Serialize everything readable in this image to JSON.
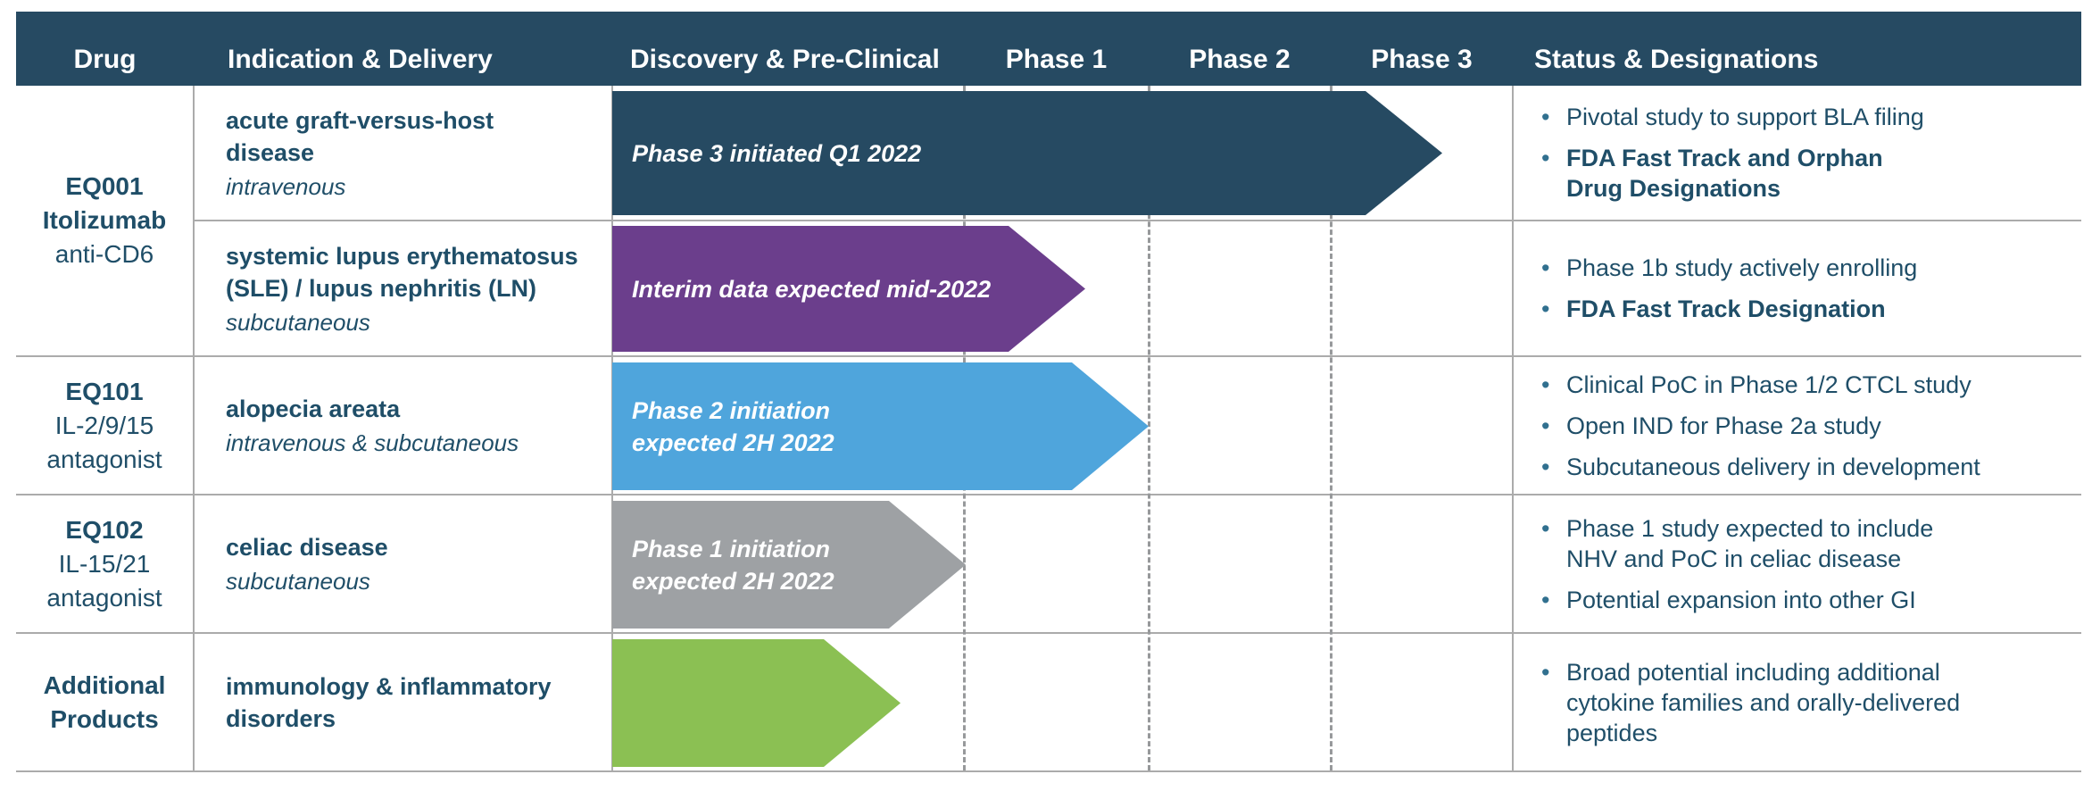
{
  "palette": {
    "header_navy": "#264A62",
    "arrow_navy": "#264A62",
    "arrow_purple": "#6B3E8C",
    "arrow_blue": "#4FA5DC",
    "arrow_gray": "#9EA1A4",
    "arrow_green": "#8BC053",
    "text_ink": "#1F4E68",
    "grid_line": "#ABABAB",
    "bullet_dot": "#31708F"
  },
  "header": {
    "drug": "Drug",
    "indication": "Indication & Delivery",
    "discovery": "Discovery & Pre-Clinical",
    "phase1": "Phase 1",
    "phase2": "Phase 2",
    "phase3": "Phase 3",
    "status": "Status & Designations"
  },
  "programs": {
    "eq001": {
      "code": "EQ001",
      "name": "Itolizumab",
      "target": "anti-CD6"
    },
    "eq101": {
      "code": "EQ101",
      "name": "IL-2/9/15",
      "target": "antagonist"
    },
    "eq102": {
      "code": "EQ102",
      "name": "IL-15/21",
      "target": "antagonist"
    },
    "additional": {
      "code": "Additional",
      "name": "Products"
    }
  },
  "lanes": {
    "gvhd": {
      "indication": "acute graft-versus-host\ndisease",
      "delivery": "intravenous",
      "arrow_label": "Phase 3 initiated Q1 2022",
      "arrow_color": "#264A62",
      "bullets": [
        {
          "text": "Pivotal study to support BLA filing",
          "bold": false
        },
        {
          "text": "FDA Fast Track and Orphan\nDrug Designations",
          "bold": true
        }
      ]
    },
    "lupus": {
      "indication": "systemic lupus erythematosus\n(SLE) / lupus nephritis (LN)",
      "delivery": "subcutaneous",
      "arrow_label": "Interim data expected mid-2022",
      "arrow_color": "#6B3E8C",
      "bullets": [
        {
          "text": "Phase 1b study actively enrolling",
          "bold": false
        },
        {
          "text": "FDA Fast Track Designation",
          "bold": true
        }
      ]
    },
    "alopecia": {
      "indication": "alopecia areata",
      "delivery": "intravenous & subcutaneous",
      "arrow_label": "Phase 2 initiation\nexpected 2H 2022",
      "arrow_color": "#4FA5DC",
      "bullets": [
        {
          "text": "Clinical PoC in Phase 1/2 CTCL study",
          "bold": false
        },
        {
          "text": "Open IND for Phase 2a study",
          "bold": false
        },
        {
          "text": "Subcutaneous delivery in development",
          "bold": false
        }
      ]
    },
    "celiac": {
      "indication": "celiac disease",
      "delivery": "subcutaneous",
      "arrow_label": "Phase 1 initiation\nexpected 2H 2022",
      "arrow_color": "#9EA1A4",
      "bullets": [
        {
          "text": "Phase 1 study expected to include\nNHV and PoC in celiac disease",
          "bold": false
        },
        {
          "text": "Potential expansion into other GI",
          "bold": false
        }
      ]
    },
    "additional": {
      "indication": "immunology & inflammatory\ndisorders",
      "delivery": "",
      "arrow_label": "",
      "arrow_color": "#8BC053",
      "bullets": [
        {
          "text": "Broad potential including additional\ncytokine families and orally-delivered\npeptides",
          "bold": false
        }
      ]
    }
  }
}
